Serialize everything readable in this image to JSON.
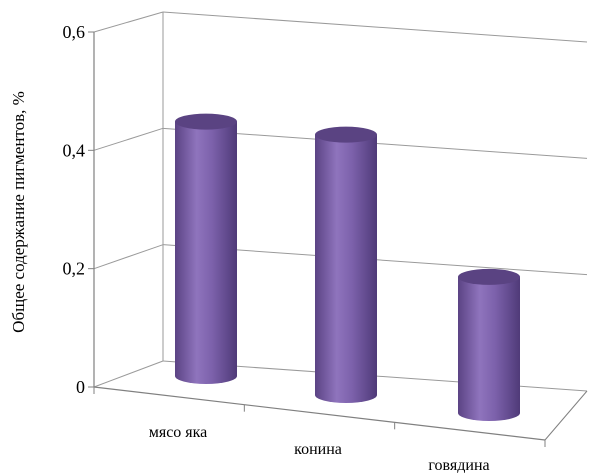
{
  "chart_data": {
    "type": "bar",
    "style": "3d-cylinder",
    "categories": [
      "мясо яка",
      "конина",
      "говядина"
    ],
    "values": [
      0.43,
      0.44,
      0.23
    ],
    "ylabel": "Общее содержание пигментов, %",
    "ylim": [
      0,
      0.6
    ],
    "yticks": [
      "0",
      "0,2",
      "0,4",
      "0,6"
    ],
    "grid": true,
    "bar_color": "#7b5ea7"
  }
}
